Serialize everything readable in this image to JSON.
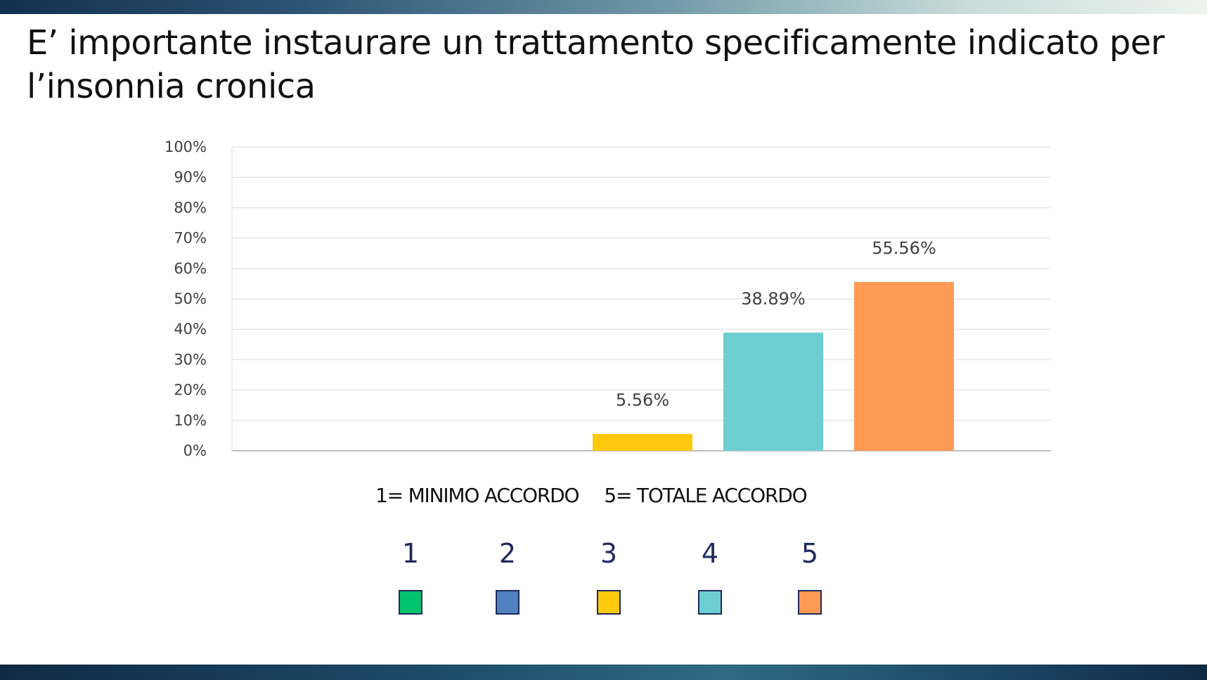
{
  "title": "E’ importante instaurare un trattamento specificamente indicato per l’insonnia cronica",
  "scale_caption": {
    "min": "1= MINIMO ACCORDO",
    "max": "5= TOTALE ACCORDO"
  },
  "legend": [
    {
      "label": "1",
      "color": "#00c36e"
    },
    {
      "label": "2",
      "color": "#4f81bd"
    },
    {
      "label": "3",
      "color": "#ffc90e"
    },
    {
      "label": "4",
      "color": "#6ecfd2"
    },
    {
      "label": "5",
      "color": "#ff9a55"
    }
  ],
  "chart_data": {
    "type": "bar",
    "categories": [
      "1",
      "2",
      "3",
      "4",
      "5"
    ],
    "values": [
      0,
      0,
      5.56,
      38.89,
      55.56
    ],
    "data_labels": [
      "",
      "",
      "5.56%",
      "38.89%",
      "55.56%"
    ],
    "colors": [
      "#00c36e",
      "#4f81bd",
      "#ffc90e",
      "#6ecfd2",
      "#ff9a55"
    ],
    "y_ticks": [
      "0%",
      "10%",
      "20%",
      "30%",
      "40%",
      "50%",
      "60%",
      "70%",
      "80%",
      "90%",
      "100%"
    ],
    "ylim": [
      0,
      100
    ],
    "grid": true,
    "xlabel": "",
    "ylabel": ""
  }
}
